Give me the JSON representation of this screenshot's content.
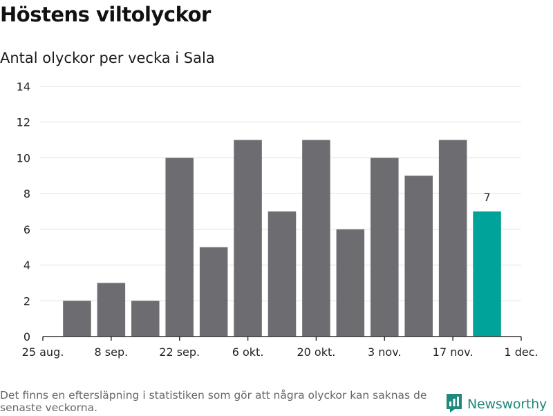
{
  "header": {
    "title": "Höstens viltolyckor",
    "subtitle": "Antal olyckor per vecka i Sala"
  },
  "footer": {
    "note": "Det finns en eftersläpning i statistiken som gör att några olyckor kan saknas de senaste veckorna.",
    "brand": "Newsworthy",
    "brand_icon": "newsworthy-logo-icon"
  },
  "colors": {
    "bar": "#6d6c71",
    "highlight": "#00a39a",
    "grid": "#e0e0e0",
    "axis": "#333333",
    "brand": "#1d8a7d"
  },
  "chart_data": {
    "type": "bar",
    "title": "Antal olyckor per vecka i Sala",
    "xlabel": "",
    "ylabel": "",
    "ylim": [
      0,
      14
    ],
    "y_ticks": [
      0,
      2,
      4,
      6,
      8,
      10,
      12,
      14
    ],
    "x_range_weeks": [
      0,
      14
    ],
    "x_tick_labels": [
      "25 aug.",
      "8 sep.",
      "22 sep.",
      "6 okt.",
      "20 okt.",
      "3 nov.",
      "17 nov.",
      "1 dec."
    ],
    "x_tick_positions_weeks": [
      0,
      2,
      4,
      6,
      8,
      10,
      12,
      14
    ],
    "bar_centers_weeks": [
      1,
      2,
      3,
      4,
      5,
      6,
      7,
      8,
      9,
      10,
      11,
      12,
      13
    ],
    "values": [
      2,
      3,
      2,
      10,
      5,
      11,
      7,
      11,
      6,
      10,
      9,
      11,
      7
    ],
    "highlight_index": 12,
    "data_labels": [
      {
        "index": 12,
        "text": "7"
      }
    ],
    "grid": true
  }
}
